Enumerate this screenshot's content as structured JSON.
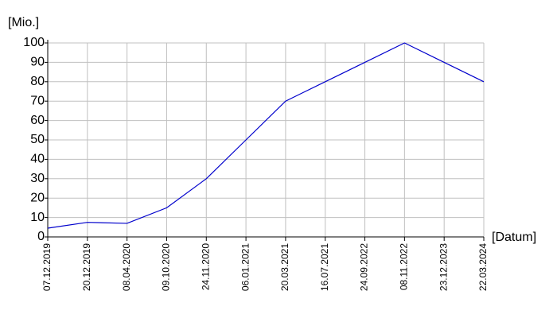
{
  "chart_data": {
    "type": "line",
    "y_label": "[Mio.]",
    "x_label": "[Datum]",
    "categories": [
      "07.12.2019",
      "20.12.2019",
      "08.04.2020",
      "09.10.2020",
      "24.11.2020",
      "06.01.2021",
      "20.03.2021",
      "16.07.2021",
      "24.09.2022",
      "08.11.2022",
      "23.12.2023",
      "22.03.2024"
    ],
    "values": [
      4.5,
      7.5,
      7,
      15,
      30,
      50,
      70,
      80,
      90,
      100,
      90,
      80
    ],
    "color": "#0000cc",
    "ylim": [
      0,
      100
    ],
    "yticks": [
      0,
      10,
      20,
      30,
      40,
      50,
      60,
      70,
      80,
      90,
      100
    ],
    "grid": true
  }
}
